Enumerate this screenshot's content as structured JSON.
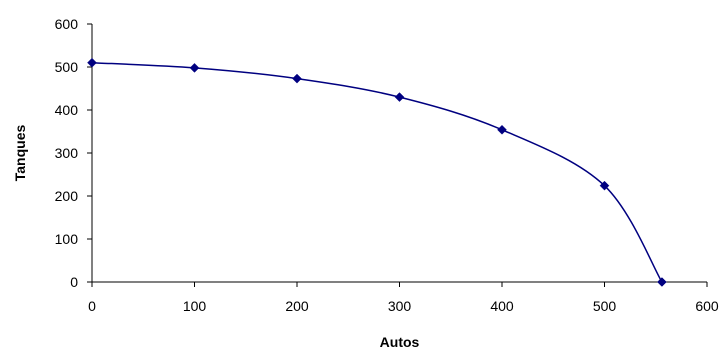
{
  "chart_data": {
    "type": "line",
    "xlabel": "Autos",
    "ylabel": "Tanques",
    "xlim": [
      0,
      600
    ],
    "ylim": [
      0,
      600
    ],
    "x_ticks": [
      0,
      100,
      200,
      300,
      400,
      500,
      600
    ],
    "y_ticks": [
      0,
      100,
      200,
      300,
      400,
      500,
      600
    ],
    "grid": false,
    "legend": "none",
    "smooth": true,
    "series": [
      {
        "x": [
          0,
          100,
          200,
          300,
          400,
          500,
          556
        ],
        "y": [
          510,
          498,
          473,
          430,
          354,
          224,
          0
        ]
      }
    ],
    "colors": {
      "line": "#000080",
      "marker": "#000080",
      "axis": "#000000"
    },
    "marker": "diamond"
  }
}
